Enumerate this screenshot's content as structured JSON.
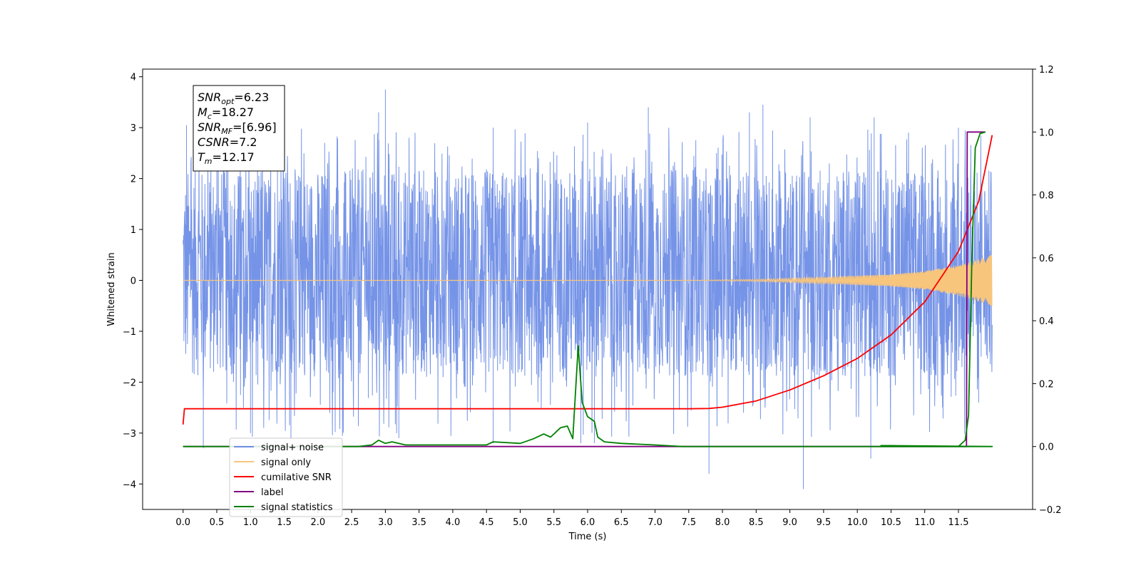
{
  "chart_data": {
    "type": "line",
    "title": "",
    "xlabel": "Time (s)",
    "ylabel": "Whitened strain",
    "ylabel_right": "",
    "xlim": [
      -0.6,
      12.6
    ],
    "ylim": [
      -4.5,
      4.15
    ],
    "ylim_right": [
      -0.2,
      1.2
    ],
    "grid": false,
    "legend_placement": "lower-left",
    "x_ticks": [
      "0.0",
      "0.5",
      "1.0",
      "1.5",
      "2.0",
      "2.5",
      "3.0",
      "3.5",
      "4.0",
      "4.5",
      "5.0",
      "5.5",
      "6.0",
      "6.5",
      "7.0",
      "7.5",
      "8.0",
      "8.5",
      "9.0",
      "9.5",
      "10.0",
      "10.5",
      "11.0",
      "11.5"
    ],
    "y_ticks_left": [
      "4",
      "3",
      "2",
      "1",
      "0",
      "−1",
      "−2",
      "−3",
      "−4"
    ],
    "y_ticks_right": [
      "1.2",
      "1.0",
      "0.8",
      "0.6",
      "0.4",
      "0.2",
      "0.0",
      "−0.2"
    ],
    "annotations": [
      {
        "base": "SNR",
        "sub": "opt",
        "value": "=6.23"
      },
      {
        "base": "M",
        "sub": "c",
        "value": "=18.27"
      },
      {
        "base": "SNR",
        "sub": "MF",
        "value": "=[6.96]"
      },
      {
        "base": "CSNR",
        "sub": "",
        "value": "=7.2"
      },
      {
        "base": "T",
        "sub": "m",
        "value": "=12.17"
      }
    ],
    "legend": [
      {
        "label": "signal+ noise",
        "color": "#6f8ee6"
      },
      {
        "label": "signal only",
        "color": "#f8c57c"
      },
      {
        "label": "cumilative SNR",
        "color": "#ff0000"
      },
      {
        "label": "label",
        "color": "#800080"
      },
      {
        "label": "signal statistics",
        "color": "#008000"
      }
    ],
    "series": [
      {
        "name": "signal+ noise",
        "axis": "left",
        "kind": "noise_band",
        "x_range": [
          0.0,
          12.0
        ],
        "envelope": [
          -1.9,
          2.2
        ],
        "outlier_range": [
          -4.1,
          3.75
        ],
        "peaks_x": [
          0.05,
          0.5,
          1.4,
          2.1,
          2.9,
          3.0,
          4.6,
          6.0,
          6.9,
          8.4,
          8.6,
          9.3,
          10.25,
          11.5
        ],
        "peaks_y": [
          3.05,
          2.4,
          2.6,
          2.7,
          3.3,
          3.75,
          3.0,
          3.1,
          3.4,
          3.3,
          3.45,
          3.2,
          3.2,
          3.0
        ],
        "troughs_x": [
          0.3,
          1.0,
          1.6,
          3.2,
          4.6,
          5.9,
          6.1,
          7.8,
          9.2,
          10.2,
          11.8
        ],
        "troughs_y": [
          -3.3,
          -3.0,
          -3.1,
          -3.1,
          -3.2,
          -3.2,
          -3.2,
          -3.8,
          -4.1,
          -3.5,
          -2.4
        ],
        "color": "#6f8ee6"
      },
      {
        "name": "signal only",
        "axis": "left",
        "kind": "chirp",
        "x_range": [
          0.0,
          12.0
        ],
        "amplitude_x": [
          0.0,
          7.5,
          8.5,
          9.5,
          10.5,
          11.0,
          11.5,
          12.0
        ],
        "amplitude_y": [
          0.0,
          0.0,
          0.02,
          0.06,
          0.12,
          0.18,
          0.3,
          0.5
        ],
        "color": "#f8c57c"
      },
      {
        "name": "cumilative SNR",
        "axis": "right",
        "x": [
          0.0,
          0.02,
          1.0,
          5.0,
          7.5,
          7.8,
          8.0,
          8.5,
          9.0,
          9.5,
          10.0,
          10.5,
          11.0,
          11.5,
          11.8,
          12.0
        ],
        "y": [
          0.07,
          0.12,
          0.12,
          0.12,
          0.12,
          0.121,
          0.125,
          0.145,
          0.18,
          0.225,
          0.28,
          0.355,
          0.46,
          0.62,
          0.78,
          0.99
        ],
        "color": "#ff0000"
      },
      {
        "name": "label",
        "axis": "right",
        "x": [
          0.0,
          11.62,
          11.63,
          11.9
        ],
        "y": [
          0.0,
          0.0,
          1.0,
          1.0
        ],
        "color": "#800080"
      },
      {
        "name": "signal statistics",
        "axis": "right",
        "x": [
          0.0,
          2.6,
          2.8,
          2.9,
          3.0,
          3.1,
          3.3,
          3.6,
          4.0,
          4.5,
          4.6,
          5.0,
          5.2,
          5.35,
          5.45,
          5.6,
          5.7,
          5.78,
          5.86,
          5.92,
          6.0,
          6.1,
          6.15,
          6.25,
          6.5,
          7.0,
          7.4,
          12.0
        ],
        "y": [
          0.0,
          0.0,
          0.005,
          0.02,
          0.01,
          0.015,
          0.005,
          0.005,
          0.005,
          0.005,
          0.015,
          0.01,
          0.025,
          0.04,
          0.03,
          0.06,
          0.065,
          0.025,
          0.32,
          0.14,
          0.095,
          0.08,
          0.03,
          0.015,
          0.01,
          0.005,
          0.0,
          0.0
        ],
        "extra_x": [
          10.35,
          11.5,
          11.6,
          11.65,
          11.7,
          11.75,
          11.82,
          11.9
        ],
        "extra_y": [
          0.003,
          0.0,
          0.02,
          0.1,
          0.6,
          0.95,
          0.995,
          1.0
        ],
        "color": "#008000"
      }
    ]
  }
}
